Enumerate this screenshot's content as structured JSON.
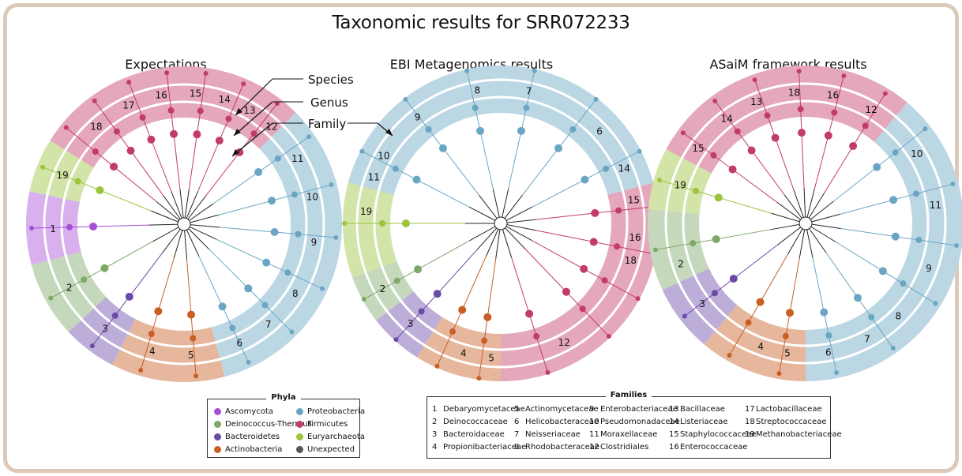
{
  "title": "Taxonomic results for SRR072233",
  "panels": [
    {
      "title": "Expectations"
    },
    {
      "title": "EBI Metagenomics results"
    },
    {
      "title": "ASaiM framework results"
    }
  ],
  "annotations": {
    "species": "Species",
    "genus": "Genus",
    "family": "Family"
  },
  "phyla_legend": {
    "title": "Phyla",
    "items": [
      {
        "label": "Ascomycota",
        "color": "#a64fd6"
      },
      {
        "label": "Deinococcus-Thermus",
        "color": "#7fa86a"
      },
      {
        "label": "Bacteroidetes",
        "color": "#6a4aa8"
      },
      {
        "label": "Actinobacteria",
        "color": "#c85f24"
      },
      {
        "label": "Proteobacteria",
        "color": "#6aa6c4"
      },
      {
        "label": "Firmicutes",
        "color": "#c23c6a"
      },
      {
        "label": "Euryarchaeota",
        "color": "#9bc43c"
      },
      {
        "label": "Unexpected",
        "color": "#555555"
      }
    ]
  },
  "families_legend": {
    "title": "Families",
    "items": [
      {
        "num": "1",
        "label": "Debaryomycetaceae"
      },
      {
        "num": "2",
        "label": "Deinococcaceae"
      },
      {
        "num": "3",
        "label": "Bacteroidaceae"
      },
      {
        "num": "4",
        "label": "Propionibacteriaceae"
      },
      {
        "num": "5",
        "label": "Actinomycetaceae"
      },
      {
        "num": "6",
        "label": "Helicobacteraceae"
      },
      {
        "num": "7",
        "label": "Neisseriaceae"
      },
      {
        "num": "8",
        "label": "Rhodobacteraceae"
      },
      {
        "num": "9",
        "label": "Enterobacteriaceae"
      },
      {
        "num": "10",
        "label": "Pseudomonadaceae"
      },
      {
        "num": "11",
        "label": "Moraxellaceae"
      },
      {
        "num": "12",
        "label": "Clostridiales"
      },
      {
        "num": "13",
        "label": "Bacillaceae"
      },
      {
        "num": "14",
        "label": "Listeriaceae"
      },
      {
        "num": "15",
        "label": "Staphylococcaceae"
      },
      {
        "num": "16",
        "label": "Enterococcaceae"
      },
      {
        "num": "17",
        "label": "Lactobacillaceae"
      },
      {
        "num": "18",
        "label": "Streptococcaceae"
      },
      {
        "num": "19",
        "label": "Methanobacteriaceae"
      }
    ]
  },
  "trees": [
    {
      "sectors": [
        {
          "phylum": 0,
          "from": 255,
          "to": 282,
          "labels": [
            {
              "text": "1",
              "at": 268
            }
          ]
        },
        {
          "phylum": 6,
          "from": 282,
          "to": 302,
          "labels": [
            {
              "text": "19",
              "at": 292
            }
          ]
        },
        {
          "phylum": 1,
          "from": 227,
          "to": 255,
          "labels": [
            {
              "text": "2",
              "at": 241
            }
          ]
        },
        {
          "phylum": 2,
          "from": 207,
          "to": 227,
          "labels": [
            {
              "text": "3",
              "at": 217
            }
          ]
        },
        {
          "phylum": 3,
          "from": 165,
          "to": 207,
          "labels": [
            {
              "text": "4",
              "at": 194
            },
            {
              "text": "5",
              "at": 177
            }
          ]
        },
        {
          "phylum": 4,
          "from": 45,
          "to": 165,
          "labels": [
            {
              "text": "6",
              "at": 155
            },
            {
              "text": "7",
              "at": 140
            },
            {
              "text": "8",
              "at": 122
            },
            {
              "text": "9",
              "at": 98
            },
            {
              "text": "10",
              "at": 78
            },
            {
              "text": "11",
              "at": 60
            }
          ]
        },
        {
          "phylum": 5,
          "from": 302,
          "to": 405,
          "labels": [
            {
              "text": "18",
              "at": 318
            },
            {
              "text": "17",
              "at": 335
            },
            {
              "text": "16",
              "at": 350
            },
            {
              "text": "15",
              "at": 365
            },
            {
              "text": "14",
              "at": 378
            },
            {
              "text": "13",
              "at": 390
            },
            {
              "text": "12",
              "at": 402
            }
          ]
        }
      ]
    },
    {
      "sectors": [
        {
          "phylum": 1,
          "from": 232,
          "to": 250,
          "labels": [
            {
              "text": "2",
              "at": 241
            }
          ]
        },
        {
          "phylum": 2,
          "from": 212,
          "to": 232,
          "labels": [
            {
              "text": "3",
              "at": 222
            }
          ]
        },
        {
          "phylum": 3,
          "from": 180,
          "to": 212,
          "labels": [
            {
              "text": "4",
              "at": 196
            },
            {
              "text": "5",
              "at": 184
            }
          ]
        },
        {
          "phylum": 6,
          "from": 250,
          "to": 290,
          "labels": [
            {
              "text": "19",
              "at": 275
            }
          ]
        },
        {
          "phylum": 5,
          "from": 145,
          "to": 180,
          "labels": [
            {
              "text": "12",
              "at": 152
            }
          ]
        },
        {
          "phylum": 5,
          "from": 75,
          "to": 145,
          "labels": [
            {
              "text": "18",
              "at": 106
            },
            {
              "text": "16",
              "at": 96
            },
            {
              "text": "15",
              "at": 80
            },
            {
              "text": "14",
              "at": 66
            }
          ]
        },
        {
          "phylum": 4,
          "from": -75,
          "to": 75,
          "labels": [
            {
              "text": "6",
              "at": 47
            },
            {
              "text": "7",
              "at": 12
            },
            {
              "text": "8",
              "at": -10
            },
            {
              "text": "9",
              "at": -38
            },
            {
              "text": "10",
              "at": -60
            },
            {
              "text": "11",
              "at": -70
            }
          ]
        }
      ]
    },
    {
      "sectors": [
        {
          "phylum": 6,
          "from": 275,
          "to": 298,
          "labels": [
            {
              "text": "19",
              "at": 287
            }
          ]
        },
        {
          "phylum": 1,
          "from": 245,
          "to": 275,
          "labels": [
            {
              "text": "2",
              "at": 252
            }
          ]
        },
        {
          "phylum": 2,
          "from": 220,
          "to": 245,
          "labels": [
            {
              "text": "3",
              "at": 232
            }
          ]
        },
        {
          "phylum": 3,
          "from": 180,
          "to": 220,
          "labels": [
            {
              "text": "4",
              "at": 200
            },
            {
              "text": "5",
              "at": 188
            }
          ]
        },
        {
          "phylum": 4,
          "from": 40,
          "to": 180,
          "labels": [
            {
              "text": "6",
              "at": 170
            },
            {
              "text": "7",
              "at": 152
            },
            {
              "text": "8",
              "at": 135
            },
            {
              "text": "9",
              "at": 110
            },
            {
              "text": "11",
              "at": 82
            },
            {
              "text": "10",
              "at": 58
            }
          ]
        },
        {
          "phylum": 5,
          "from": 298,
          "to": 400,
          "labels": [
            {
              "text": "15",
              "at": 305
            },
            {
              "text": "14",
              "at": 323
            },
            {
              "text": "13",
              "at": 338
            },
            {
              "text": "18",
              "at": 355
            },
            {
              "text": "16",
              "at": 372
            },
            {
              "text": "12",
              "at": 390
            }
          ]
        }
      ]
    }
  ]
}
